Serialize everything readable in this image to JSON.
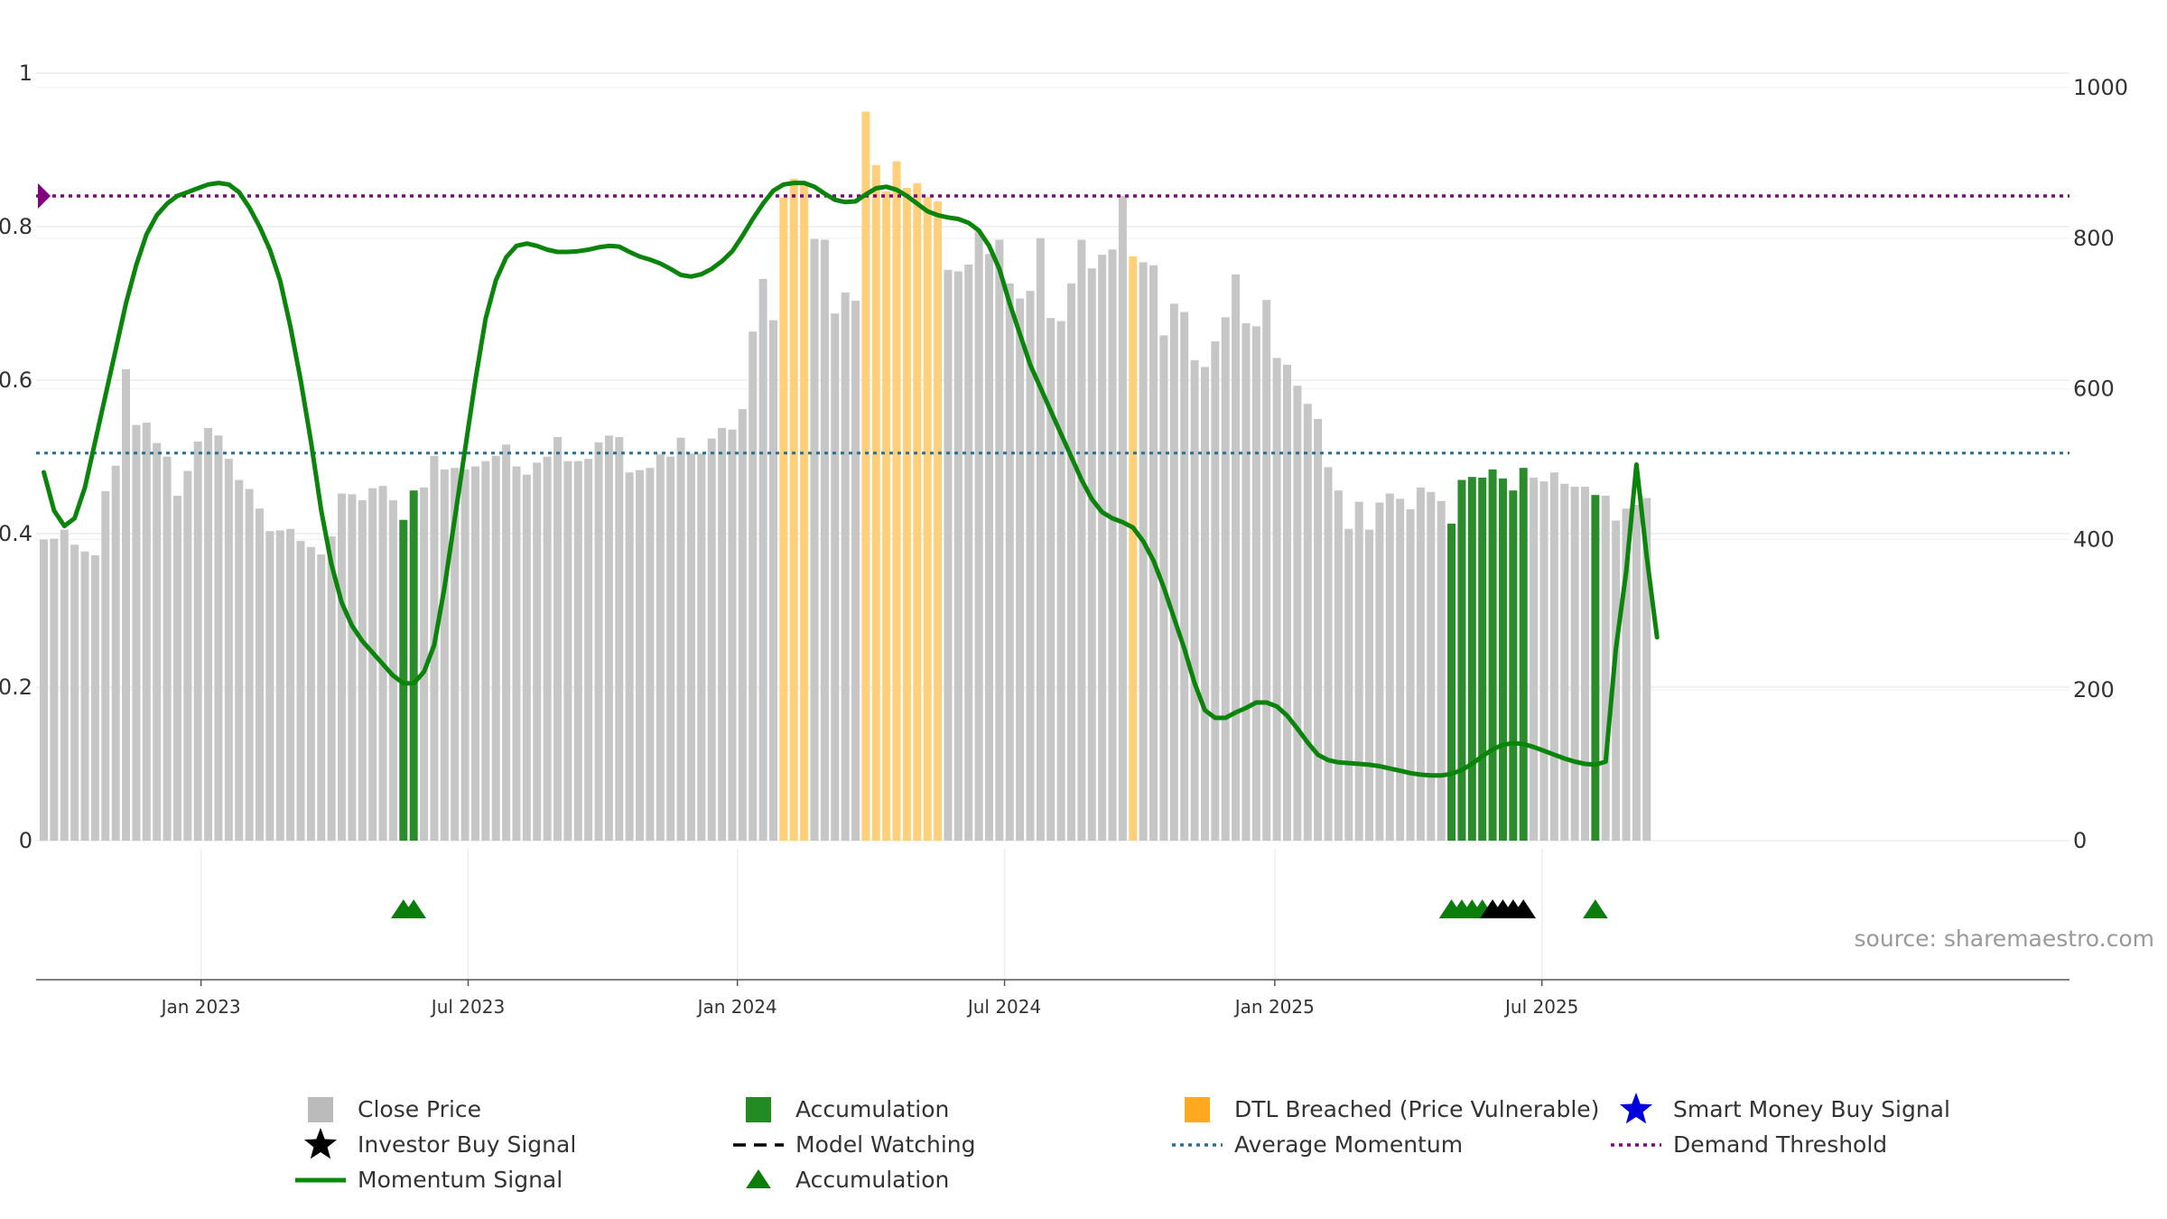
{
  "chart_data": {
    "type": "bar",
    "title": "",
    "source_note": "source: sharemaestro.com",
    "left_axis": {
      "ticks": [
        0,
        0.2,
        0.4,
        0.6,
        0.8,
        1
      ],
      "labels": [
        "0",
        "0.2",
        "0.4",
        "0.6",
        "0.8",
        "1"
      ],
      "ylim": [
        0,
        1
      ]
    },
    "right_axis": {
      "ticks": [
        0,
        200,
        400,
        600,
        800,
        1000
      ],
      "labels": [
        "0",
        "200",
        "400",
        "600",
        "800",
        "1000"
      ],
      "ylim": [
        0,
        1000
      ]
    },
    "x_ticks": [
      {
        "label": "Jan 2023",
        "index": 15.3
      },
      {
        "label": "Jul 2023",
        "index": 41.3
      },
      {
        "label": "Jan 2024",
        "index": 67.5
      },
      {
        "label": "Jul 2024",
        "index": 93.5
      },
      {
        "label": "Jan 2025",
        "index": 119.8
      },
      {
        "label": "Jul 2025",
        "index": 145.8
      }
    ],
    "close_prices": [
      400,
      401,
      413,
      393,
      384,
      379,
      464,
      498,
      626,
      552,
      555,
      528,
      510,
      458,
      491,
      530,
      548,
      538,
      507,
      479,
      467,
      441,
      411,
      412,
      414,
      398,
      390,
      380,
      404,
      461,
      460,
      452,
      468,
      471,
      452,
      426,
      465,
      469,
      511,
      493,
      495,
      493,
      497,
      504,
      511,
      526,
      497,
      486,
      502,
      510,
      536,
      504,
      504,
      507,
      529,
      538,
      536,
      489,
      492,
      495,
      513,
      510,
      535,
      514,
      514,
      534,
      548,
      546,
      573,
      676,
      746,
      691,
      854,
      879,
      873,
      799,
      798,
      700,
      728,
      717,
      968,
      897,
      862,
      902,
      867,
      873,
      855,
      849,
      758,
      756,
      765,
      809,
      779,
      798,
      740,
      720,
      730,
      800,
      694,
      690,
      740,
      798,
      760,
      778,
      785,
      856,
      776,
      768,
      764,
      671,
      713,
      702,
      638,
      629,
      663,
      695,
      752,
      687,
      683,
      718,
      641,
      632,
      604,
      580,
      560,
      496,
      465,
      414,
      450,
      413,
      449,
      461,
      454,
      440,
      469,
      463,
      451,
      421,
      479,
      483,
      482,
      493,
      481,
      465,
      495,
      482,
      477,
      489,
      474,
      470,
      470,
      459,
      458,
      425,
      441,
      446,
      455
    ],
    "accumulation_bar_indices": [
      35,
      36,
      137,
      138,
      139,
      140,
      141,
      142,
      143,
      144,
      151
    ],
    "dtl_breached_bar_indices": [
      72,
      73,
      74,
      80,
      81,
      82,
      83,
      84,
      85,
      86,
      87,
      106
    ],
    "momentum_signal": [
      0.48,
      0.43,
      0.41,
      0.42,
      0.46,
      0.52,
      0.58,
      0.64,
      0.7,
      0.75,
      0.79,
      0.815,
      0.83,
      0.84,
      0.845,
      0.85,
      0.855,
      0.857,
      0.855,
      0.845,
      0.825,
      0.8,
      0.77,
      0.73,
      0.67,
      0.6,
      0.52,
      0.43,
      0.36,
      0.31,
      0.28,
      0.26,
      0.245,
      0.23,
      0.215,
      0.205,
      0.205,
      0.22,
      0.255,
      0.33,
      0.42,
      0.51,
      0.6,
      0.68,
      0.73,
      0.76,
      0.775,
      0.778,
      0.775,
      0.77,
      0.767,
      0.767,
      0.768,
      0.77,
      0.773,
      0.775,
      0.774,
      0.767,
      0.761,
      0.757,
      0.752,
      0.745,
      0.737,
      0.735,
      0.738,
      0.745,
      0.755,
      0.768,
      0.788,
      0.81,
      0.83,
      0.847,
      0.855,
      0.857,
      0.857,
      0.852,
      0.843,
      0.835,
      0.832,
      0.833,
      0.842,
      0.85,
      0.852,
      0.848,
      0.84,
      0.83,
      0.82,
      0.815,
      0.812,
      0.81,
      0.805,
      0.795,
      0.775,
      0.745,
      0.7,
      0.66,
      0.62,
      0.59,
      0.56,
      0.53,
      0.5,
      0.47,
      0.445,
      0.428,
      0.42,
      0.415,
      0.408,
      0.39,
      0.365,
      0.33,
      0.29,
      0.25,
      0.205,
      0.17,
      0.16,
      0.16,
      0.167,
      0.173,
      0.18,
      0.18,
      0.175,
      0.163,
      0.146,
      0.128,
      0.112,
      0.105,
      0.102,
      0.101,
      0.1,
      0.099,
      0.097,
      0.094,
      0.091,
      0.088,
      0.086,
      0.085,
      0.085,
      0.087,
      0.092,
      0.1,
      0.11,
      0.119,
      0.125,
      0.127,
      0.126,
      0.122,
      0.117,
      0.112,
      0.107,
      0.103,
      0.1,
      0.099,
      0.103,
      0.25,
      0.35,
      0.49,
      0.37,
      0.265
    ],
    "average_momentum": 0.505,
    "demand_threshold": 0.84,
    "accumulation_triangle_indices": [
      35,
      36,
      137,
      138,
      139,
      140,
      151
    ],
    "investor_buy_star_indices": [
      141,
      142,
      143,
      144
    ],
    "legend": [
      {
        "label": "Close Price",
        "symbol": "square",
        "color": "#bbbbbb"
      },
      {
        "label": "Accumulation",
        "symbol": "square",
        "color": "#228b22"
      },
      {
        "label": "DTL Breached (Price Vulnerable)",
        "symbol": "square",
        "color": "#ffa820"
      },
      {
        "label": "Smart Money Buy Signal",
        "symbol": "star",
        "color": "#0000dd"
      },
      {
        "label": "Investor Buy Signal",
        "symbol": "star",
        "color": "#000000"
      },
      {
        "label": "Model Watching",
        "symbol": "dash",
        "color": "#000000"
      },
      {
        "label": "Average Momentum",
        "symbol": "dot",
        "color": "#2a6f8f"
      },
      {
        "label": "Demand Threshold",
        "symbol": "dot",
        "color": "#800080"
      },
      {
        "label": "Momentum Signal",
        "symbol": "line",
        "color": "#0a8a0a"
      },
      {
        "label": "Accumulation",
        "symbol": "triangle",
        "color": "#0a7d0a"
      }
    ],
    "colors": {
      "close": "#c6c6c6",
      "accumulation": "#2b8c2b",
      "dtl": "#ffcf7a",
      "momentum": "#0a840a",
      "average": "#2a6f8f",
      "threshold": "#800080",
      "triangle": "#0a7d0a",
      "star": "#000000"
    }
  }
}
